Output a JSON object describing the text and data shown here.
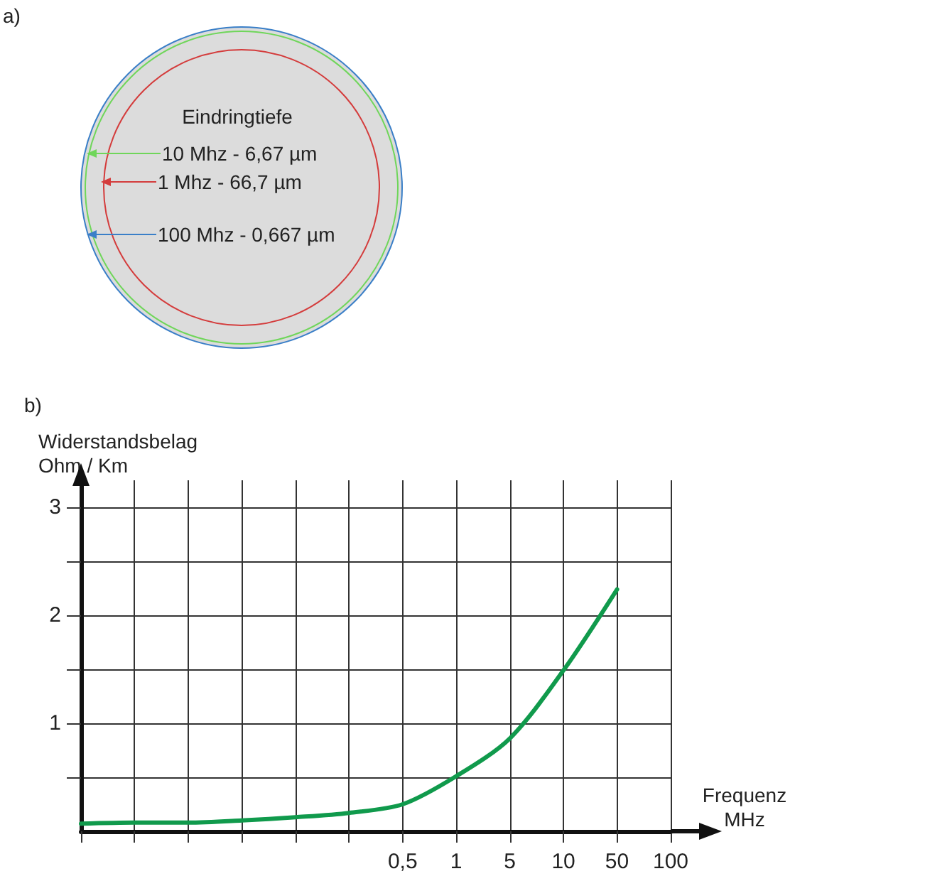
{
  "chart_data": {
    "type": "line",
    "annotations": [
      "a)",
      "Eindringtiefe",
      "10 Mhz - 6,67 µm",
      "1 Mhz - 66,7 µm",
      "100 Mhz - 0,667 µm",
      "b)"
    ],
    "xlabel": "Frequenz\nMHz",
    "ylabel": "Widerstandsbelag\nOhm / Km",
    "categories": [
      null,
      null,
      null,
      null,
      null,
      null,
      "0,5",
      "1",
      "5",
      "10",
      "50",
      "100"
    ],
    "series": [
      {
        "color": "#109a4c",
        "values": [
          0.07,
          0.08,
          0.08,
          0.1,
          0.13,
          0.17,
          0.25,
          0.51,
          0.86,
          1.49,
          2.24,
          null
        ]
      }
    ],
    "ylim": [
      0,
      3.25
    ],
    "yticks": [
      {
        "value": 0.5,
        "label": null
      },
      1,
      {
        "value": 1.5,
        "label": null
      },
      2,
      {
        "value": 2.5,
        "label": null
      },
      3
    ],
    "grid": true,
    "marker": "none",
    "line_style": "solid"
  }
}
